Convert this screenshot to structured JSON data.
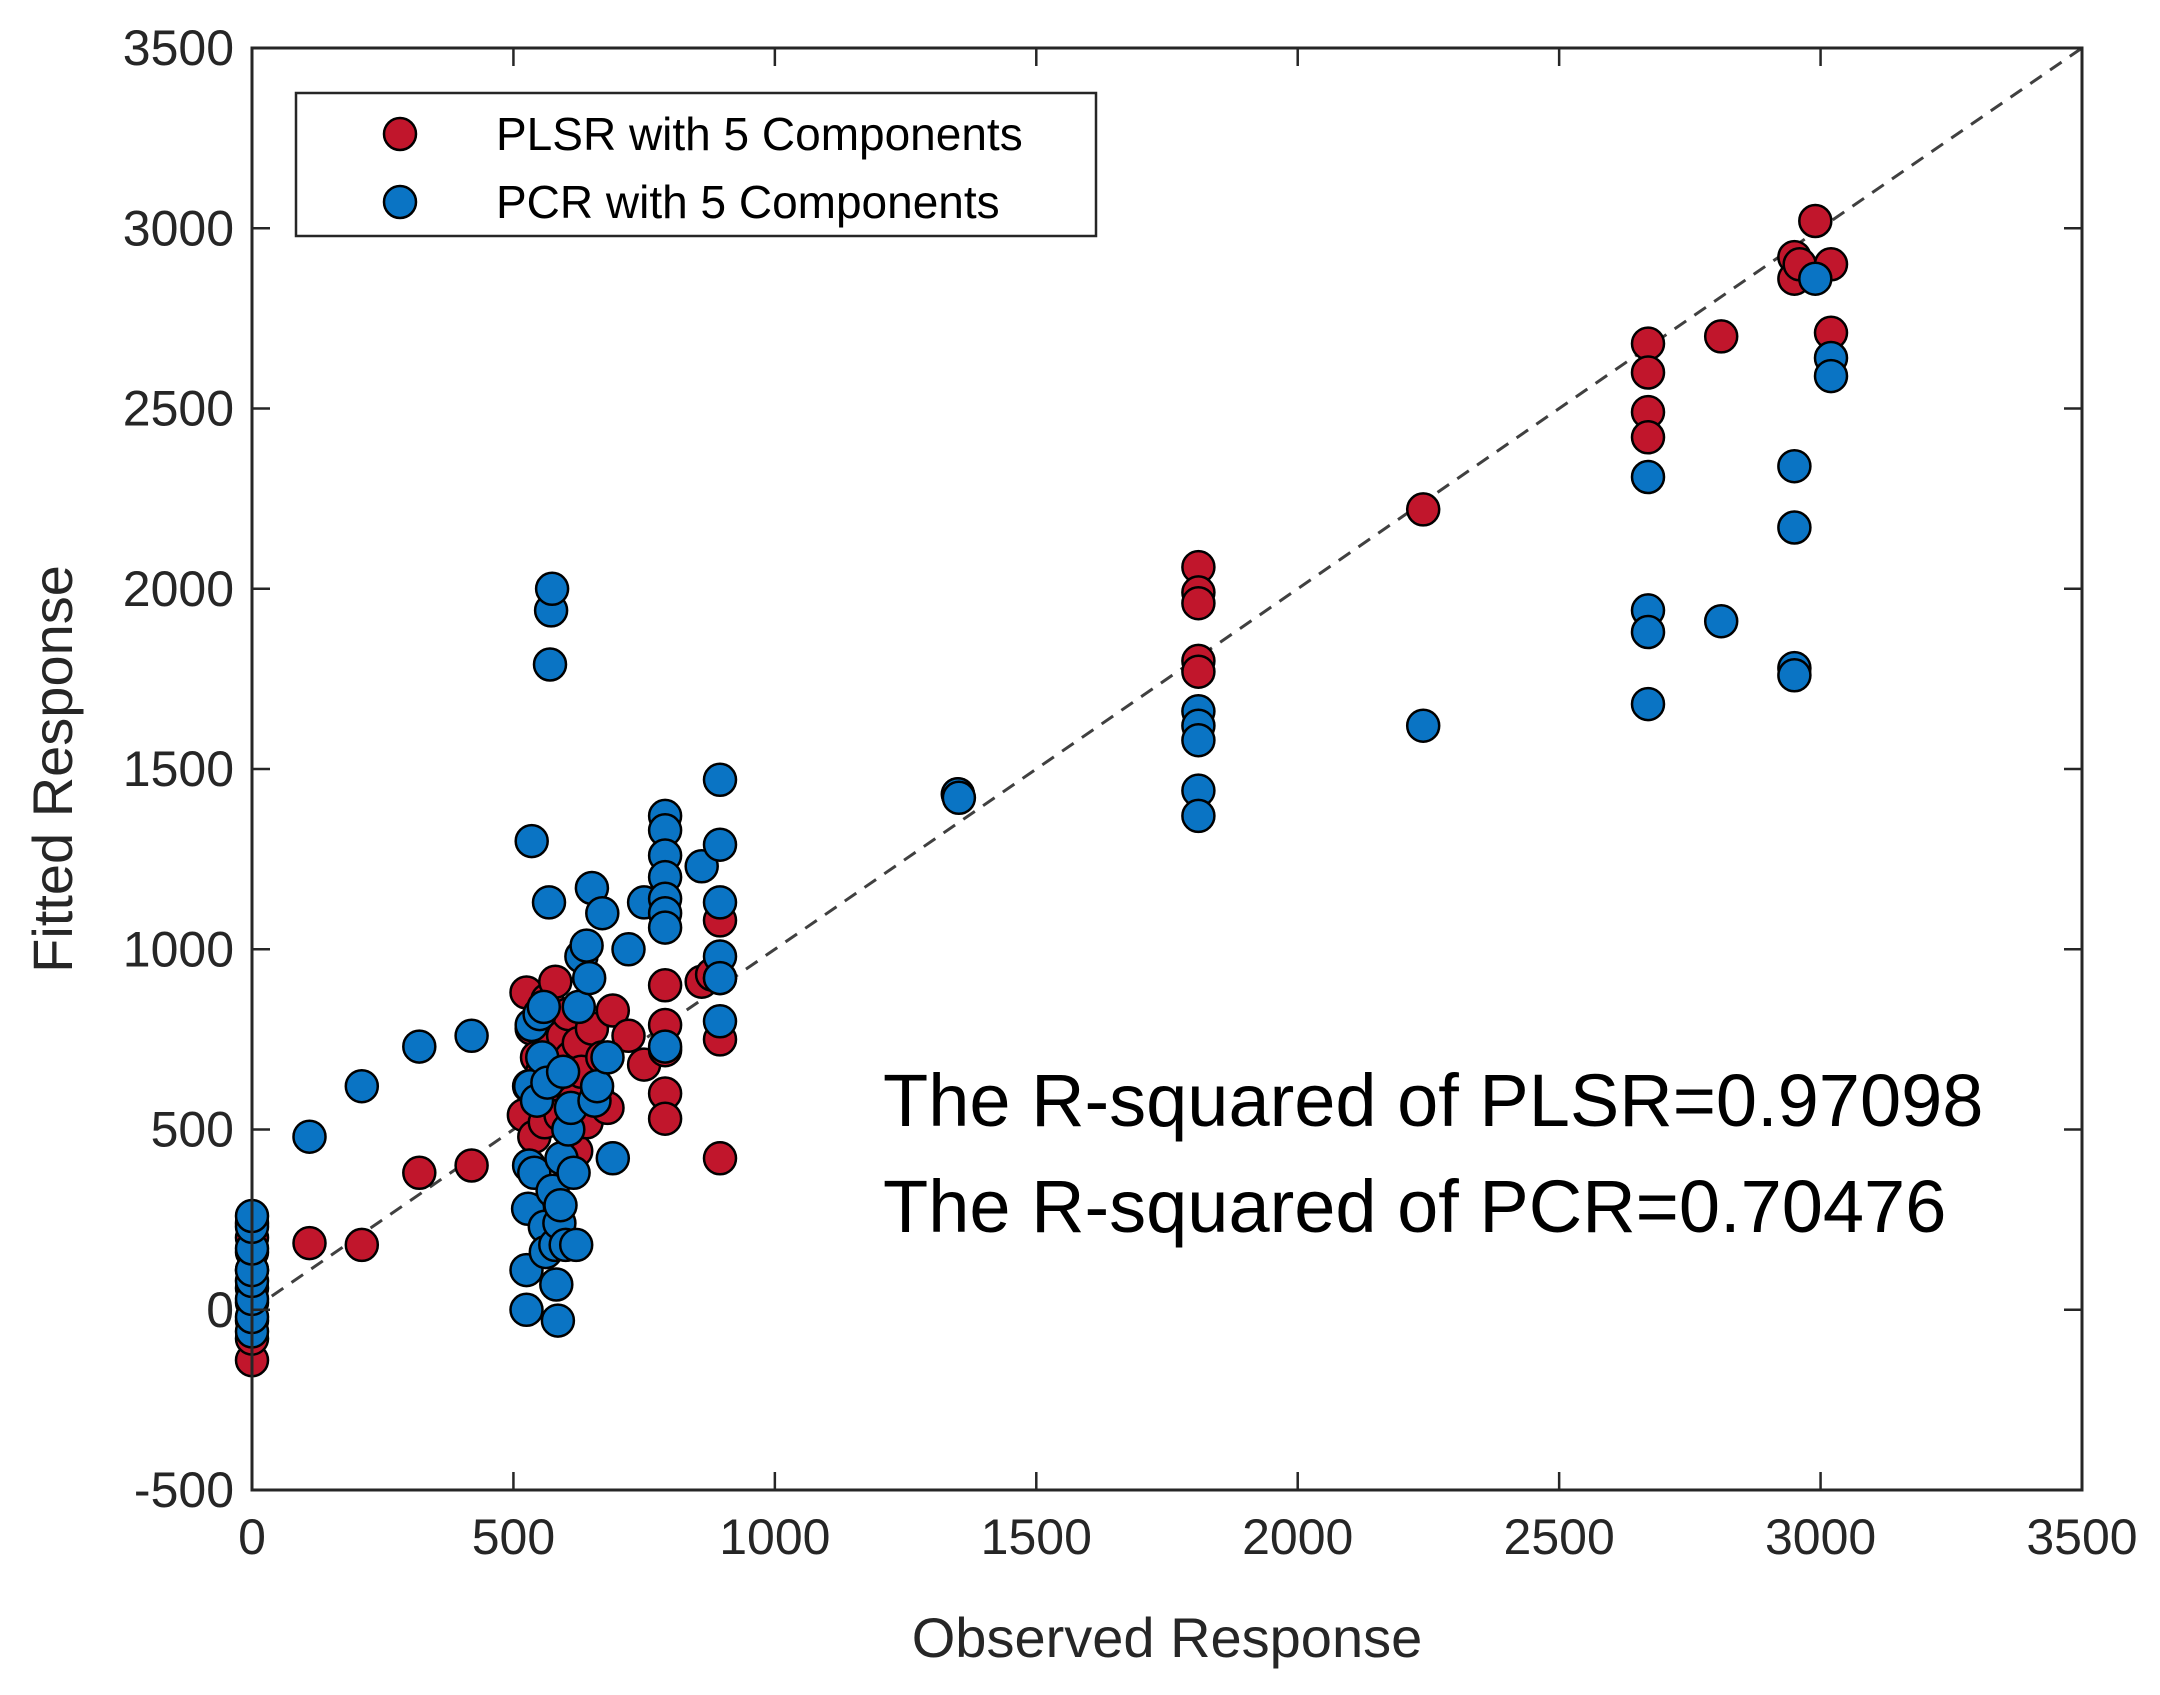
{
  "chart_data": {
    "type": "scatter",
    "title": "",
    "xlabel": "Observed Response",
    "ylabel": "Fitted Response",
    "xlim": [
      0,
      3500
    ],
    "ylim": [
      -500,
      3500
    ],
    "xticks": [
      0,
      500,
      1000,
      1500,
      2000,
      2500,
      3000,
      3500
    ],
    "yticks": [
      -500,
      0,
      500,
      1000,
      1500,
      2000,
      2500,
      3000,
      3500
    ],
    "xtick_labels": [
      "0",
      "500",
      "1000",
      "1500",
      "2000",
      "2500",
      "3000",
      "3500"
    ],
    "ytick_labels": [
      "-500",
      "0",
      "500",
      "1000",
      "1500",
      "2000",
      "2500",
      "3000",
      "3500"
    ],
    "reference_line": {
      "style": "dashed",
      "x": [
        0,
        3500
      ],
      "y": [
        0,
        3500
      ],
      "color": "#404040"
    },
    "legend_position": "top-left",
    "grid": false,
    "series": [
      {
        "name": "PLSR with 5 Components",
        "color": "#c1162c",
        "edge_color": "#000000",
        "points": [
          [
            0,
            -140
          ],
          [
            0,
            -80
          ],
          [
            0,
            -30
          ],
          [
            0,
            20
          ],
          [
            0,
            60
          ],
          [
            0,
            110
          ],
          [
            0,
            160
          ],
          [
            0,
            200
          ],
          [
            0,
            240
          ],
          [
            110,
            185
          ],
          [
            210,
            180
          ],
          [
            320,
            380
          ],
          [
            420,
            400
          ],
          [
            520,
            540
          ],
          [
            525,
            880
          ],
          [
            530,
            620
          ],
          [
            535,
            780
          ],
          [
            540,
            480
          ],
          [
            545,
            700
          ],
          [
            550,
            580
          ],
          [
            555,
            660
          ],
          [
            560,
            520
          ],
          [
            565,
            860
          ],
          [
            570,
            750
          ],
          [
            575,
            600
          ],
          [
            580,
            910
          ],
          [
            585,
            680
          ],
          [
            590,
            540
          ],
          [
            595,
            760
          ],
          [
            600,
            630
          ],
          [
            605,
            820
          ],
          [
            610,
            700
          ],
          [
            615,
            580
          ],
          [
            620,
            440
          ],
          [
            625,
            740
          ],
          [
            630,
            660
          ],
          [
            640,
            520
          ],
          [
            650,
            780
          ],
          [
            660,
            600
          ],
          [
            670,
            700
          ],
          [
            680,
            560
          ],
          [
            690,
            830
          ],
          [
            720,
            760
          ],
          [
            750,
            680
          ],
          [
            790,
            900
          ],
          [
            790,
            790
          ],
          [
            790,
            720
          ],
          [
            790,
            600
          ],
          [
            790,
            530
          ],
          [
            860,
            910
          ],
          [
            880,
            930
          ],
          [
            895,
            1080
          ],
          [
            895,
            750
          ],
          [
            895,
            920
          ],
          [
            895,
            420
          ],
          [
            1350,
            1430
          ],
          [
            1810,
            2060
          ],
          [
            1810,
            1990
          ],
          [
            1810,
            1960
          ],
          [
            1810,
            1800
          ],
          [
            1810,
            1770
          ],
          [
            2240,
            2220
          ],
          [
            2670,
            2680
          ],
          [
            2670,
            2600
          ],
          [
            2670,
            2490
          ],
          [
            2670,
            2420
          ],
          [
            2810,
            2700
          ],
          [
            2950,
            2920
          ],
          [
            2950,
            2860
          ],
          [
            2960,
            2900
          ],
          [
            2990,
            3020
          ],
          [
            3020,
            2900
          ],
          [
            3020,
            2710
          ]
        ]
      },
      {
        "name": "PCR with 5 Components",
        "color": "#0a74c4",
        "edge_color": "#000000",
        "points": [
          [
            0,
            -60
          ],
          [
            0,
            -20
          ],
          [
            0,
            30
          ],
          [
            0,
            80
          ],
          [
            0,
            110
          ],
          [
            0,
            170
          ],
          [
            0,
            230
          ],
          [
            0,
            260
          ],
          [
            110,
            480
          ],
          [
            210,
            620
          ],
          [
            320,
            730
          ],
          [
            420,
            760
          ],
          [
            525,
            0
          ],
          [
            525,
            110
          ],
          [
            528,
            280
          ],
          [
            530,
            400
          ],
          [
            532,
            620
          ],
          [
            535,
            790
          ],
          [
            535,
            1300
          ],
          [
            540,
            380
          ],
          [
            545,
            580
          ],
          [
            550,
            820
          ],
          [
            555,
            700
          ],
          [
            558,
            840
          ],
          [
            560,
            230
          ],
          [
            562,
            160
          ],
          [
            565,
            630
          ],
          [
            568,
            1130
          ],
          [
            570,
            1790
          ],
          [
            572,
            1940
          ],
          [
            574,
            2000
          ],
          [
            575,
            330
          ],
          [
            580,
            180
          ],
          [
            582,
            70
          ],
          [
            585,
            -30
          ],
          [
            588,
            240
          ],
          [
            590,
            290
          ],
          [
            592,
            420
          ],
          [
            595,
            660
          ],
          [
            600,
            180
          ],
          [
            605,
            500
          ],
          [
            610,
            560
          ],
          [
            615,
            380
          ],
          [
            620,
            180
          ],
          [
            625,
            840
          ],
          [
            630,
            980
          ],
          [
            640,
            1010
          ],
          [
            645,
            920
          ],
          [
            650,
            1170
          ],
          [
            655,
            580
          ],
          [
            660,
            620
          ],
          [
            670,
            1100
          ],
          [
            680,
            700
          ],
          [
            690,
            420
          ],
          [
            720,
            1000
          ],
          [
            750,
            1130
          ],
          [
            790,
            1370
          ],
          [
            790,
            1330
          ],
          [
            790,
            1260
          ],
          [
            790,
            1200
          ],
          [
            790,
            1140
          ],
          [
            790,
            1100
          ],
          [
            790,
            1060
          ],
          [
            790,
            730
          ],
          [
            860,
            1230
          ],
          [
            895,
            1470
          ],
          [
            895,
            1290
          ],
          [
            895,
            1130
          ],
          [
            895,
            980
          ],
          [
            895,
            920
          ],
          [
            895,
            800
          ],
          [
            1350,
            1430
          ],
          [
            1352,
            1420
          ],
          [
            1810,
            1660
          ],
          [
            1810,
            1620
          ],
          [
            1810,
            1580
          ],
          [
            1810,
            1440
          ],
          [
            1810,
            1370
          ],
          [
            2240,
            1620
          ],
          [
            2670,
            2310
          ],
          [
            2670,
            1940
          ],
          [
            2670,
            1880
          ],
          [
            2670,
            1680
          ],
          [
            2810,
            1910
          ],
          [
            2950,
            2340
          ],
          [
            2950,
            2170
          ],
          [
            2950,
            1780
          ],
          [
            2950,
            1760
          ],
          [
            2990,
            2860
          ],
          [
            3020,
            2640
          ],
          [
            3020,
            2590
          ]
        ]
      }
    ],
    "annotations": [
      "The R-squared of PLSR=0.97098",
      "The R-squared of PCR=0.70476"
    ]
  }
}
